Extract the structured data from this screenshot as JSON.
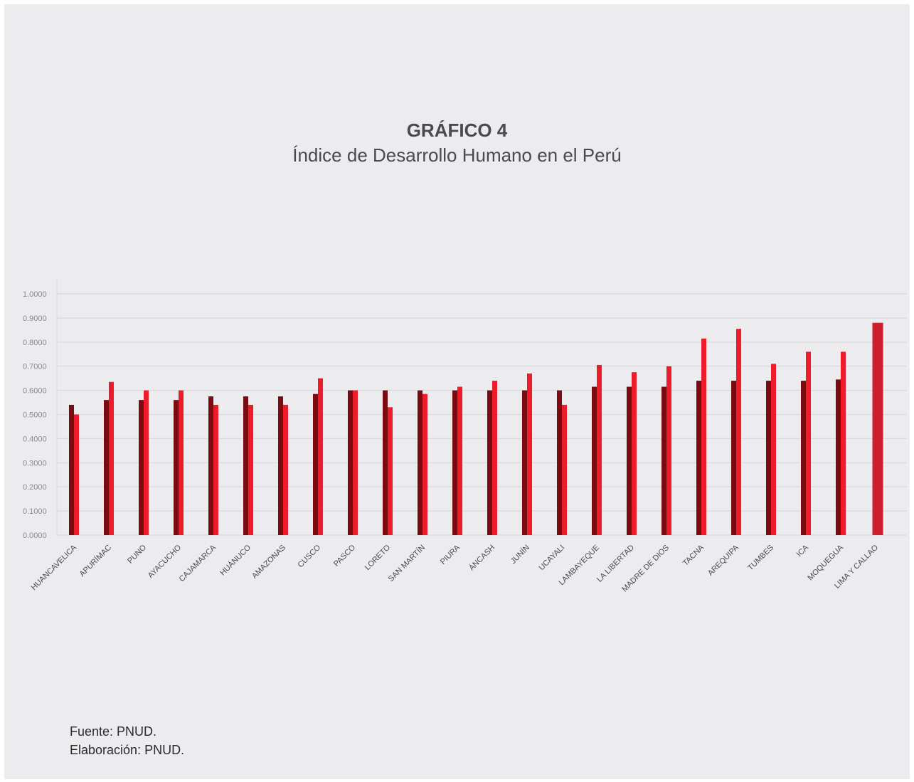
{
  "figure": {
    "title": "GRÁFICO 4",
    "subtitle": "Índice de Desarrollo Humano en el Perú",
    "source": "Fuente: PNUD.",
    "credit": "Elaboración: PNUD."
  },
  "colors": {
    "background": "#ececee",
    "series_dark": "#7a0b10",
    "series_bright": "#ed1c2a",
    "series_single": "#d01f2c",
    "gridline": "#d9d9dc",
    "tick_text": "#8a8a8c",
    "category_text": "#4a4a4c"
  },
  "chart_data": {
    "type": "bar",
    "title": "GRÁFICO 4",
    "subtitle": "Índice de Desarrollo Humano en el Perú",
    "xlabel": "",
    "ylabel": "",
    "ylim": [
      0,
      1
    ],
    "yticks": [
      "0.0000",
      "0.1000",
      "0.2000",
      "0.3000",
      "0.4000",
      "0.5000",
      "0.6000",
      "0.7000",
      "0.8000",
      "0.9000",
      "1.0000"
    ],
    "grid": true,
    "legend": "none",
    "categories": [
      "HUANCAVELICA",
      "APURÍMAC",
      "PUNO",
      "AYACUCHO",
      "CAJAMARCA",
      "HUÁNUCO",
      "AMAZONAS",
      "CUSCO",
      "PASCO",
      "LORETO",
      "SAN MARTÍN",
      "PIURA",
      "ÁNCASH",
      "JUNÍN",
      "UCAYALI",
      "LAMBAYEQUE",
      "LA LIBERTAD",
      "MADRE DE DIOS",
      "TACNA",
      "AREQUIPA",
      "TUMBES",
      "ICA",
      "MOQUEGUA",
      "LIMA Y CALLAO"
    ],
    "series": [
      {
        "values": [
          0.54,
          0.56,
          0.56,
          0.56,
          0.575,
          0.575,
          0.575,
          0.585,
          0.6,
          0.6,
          0.6,
          0.6,
          0.6,
          0.6,
          0.6,
          0.615,
          0.615,
          0.615,
          0.64,
          0.64,
          0.64,
          0.64,
          0.645,
          null
        ]
      },
      {
        "values": [
          0.5,
          0.635,
          0.6,
          0.6,
          0.54,
          0.54,
          0.54,
          0.65,
          0.6,
          0.53,
          0.585,
          0.615,
          0.64,
          0.67,
          0.54,
          0.705,
          0.675,
          0.7,
          0.815,
          0.855,
          0.71,
          0.76,
          0.76,
          0.88
        ]
      }
    ]
  }
}
